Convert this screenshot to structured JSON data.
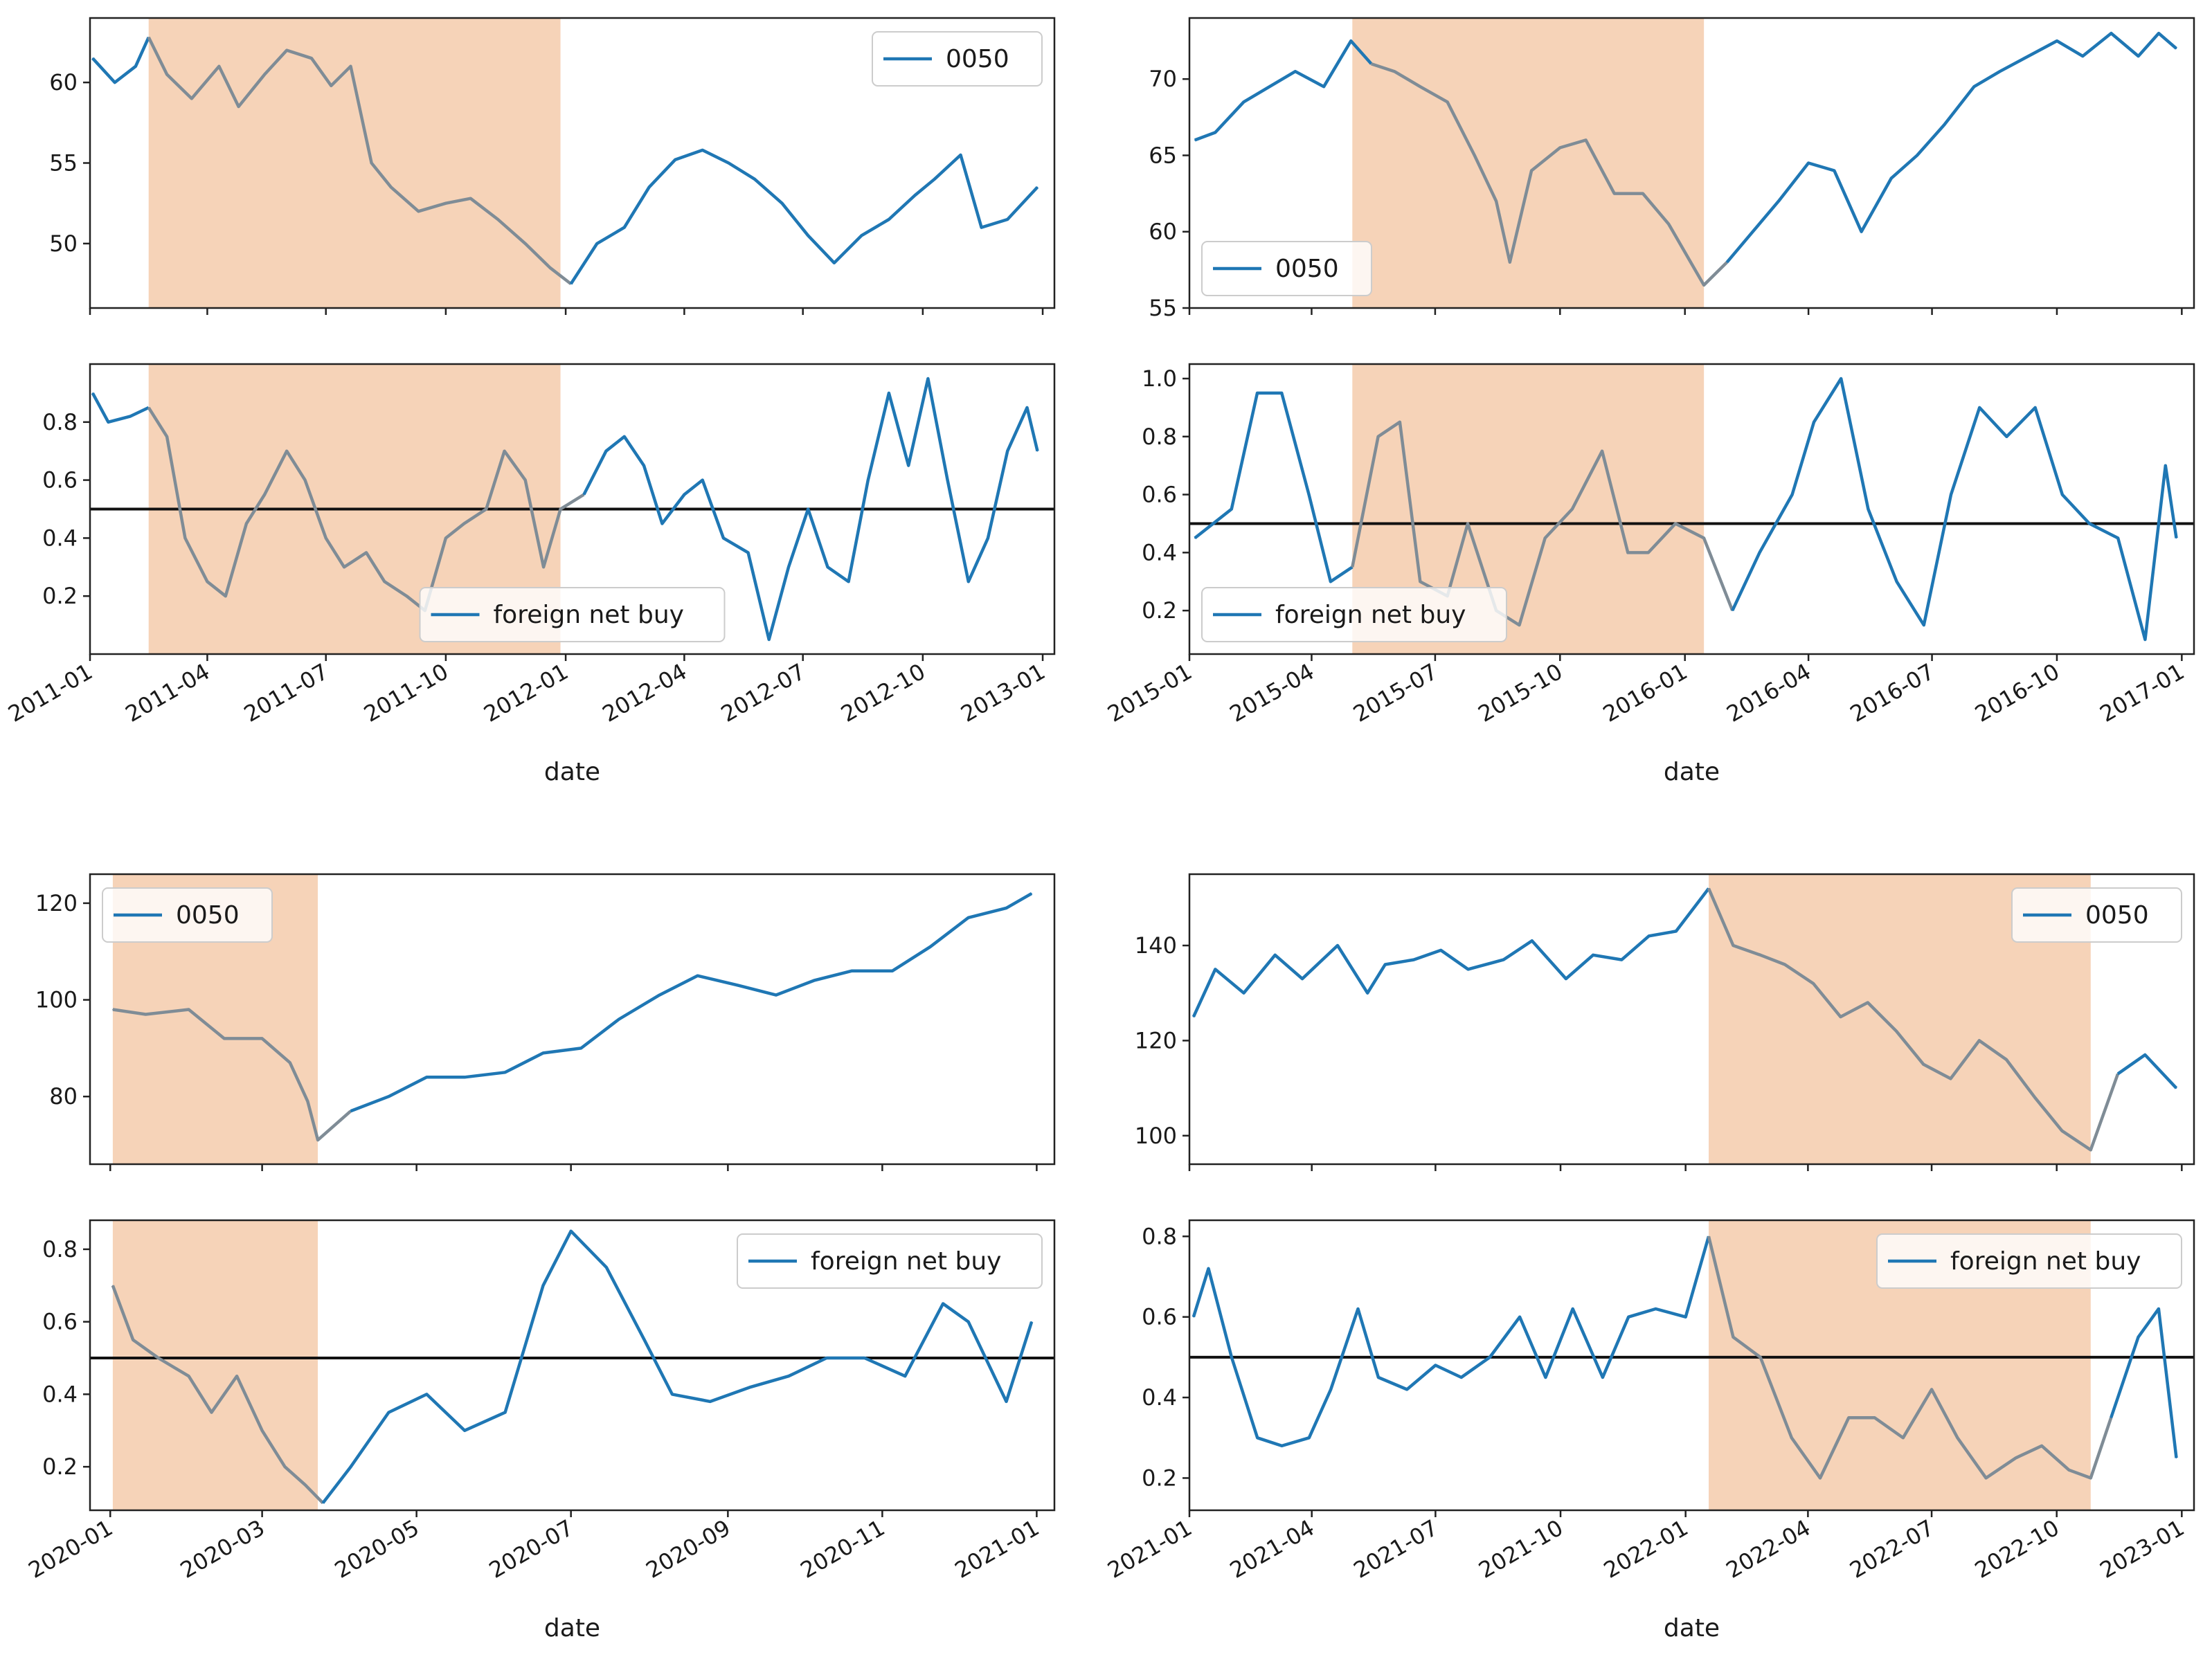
{
  "chart_data": [
    {
      "type": "line",
      "period": "2011-2012",
      "xlabel": "date",
      "xticks": [
        "2011-01",
        "2011-04",
        "2011-07",
        "2011-10",
        "2012-01",
        "2012-04",
        "2012-07",
        "2012-10",
        "2013-01"
      ],
      "xlim": [
        "2011-01-01",
        "2013-01-10"
      ],
      "highlight": [
        "2011-02-15",
        "2011-12-28"
      ],
      "highlight_color": "#f6d3b8",
      "line_color": "#1f77b4",
      "highlight_line_color": "#7f8c96",
      "price": {
        "legend": "0050",
        "legend_position": "upper right",
        "yticks": [
          "50",
          "55",
          "60"
        ],
        "ylim": [
          46,
          64
        ],
        "x": [
          "2011-01-03",
          "2011-01-20",
          "2011-02-05",
          "2011-02-15",
          "2011-03-01",
          "2011-03-20",
          "2011-04-10",
          "2011-04-25",
          "2011-05-15",
          "2011-06-01",
          "2011-06-20",
          "2011-07-05",
          "2011-07-20",
          "2011-08-05",
          "2011-08-20",
          "2011-09-10",
          "2011-10-01",
          "2011-10-20",
          "2011-11-10",
          "2011-12-01",
          "2011-12-20",
          "2012-01-05",
          "2012-01-25",
          "2012-02-15",
          "2012-03-05",
          "2012-03-25",
          "2012-04-15",
          "2012-05-05",
          "2012-05-25",
          "2012-06-15",
          "2012-07-05",
          "2012-07-25",
          "2012-08-15",
          "2012-09-05",
          "2012-09-25",
          "2012-10-10",
          "2012-10-30",
          "2012-11-15",
          "2012-12-05",
          "2012-12-28"
        ],
        "values": [
          61.5,
          60.0,
          61.0,
          62.8,
          60.5,
          59.0,
          61.0,
          58.5,
          60.5,
          62.0,
          61.5,
          59.8,
          61.0,
          55.0,
          53.5,
          52.0,
          52.5,
          52.8,
          51.5,
          50.0,
          48.5,
          47.5,
          50.0,
          51.0,
          53.5,
          55.2,
          55.8,
          55.0,
          54.0,
          52.5,
          50.5,
          48.8,
          50.5,
          51.5,
          53.0,
          54.0,
          55.5,
          51.0,
          51.5,
          53.5
        ]
      },
      "flow": {
        "legend": "foreign net buy",
        "legend_position": "lower center",
        "yticks": [
          "0.2",
          "0.4",
          "0.6",
          "0.8"
        ],
        "ylim": [
          0.0,
          1.0
        ],
        "reference_line": 0.5,
        "x": [
          "2011-01-03",
          "2011-01-15",
          "2011-02-01",
          "2011-02-15",
          "2011-03-01",
          "2011-03-15",
          "2011-04-01",
          "2011-04-15",
          "2011-05-01",
          "2011-05-15",
          "2011-06-01",
          "2011-06-15",
          "2011-07-01",
          "2011-07-15",
          "2011-08-01",
          "2011-08-15",
          "2011-09-01",
          "2011-09-15",
          "2011-10-01",
          "2011-10-15",
          "2011-11-01",
          "2011-11-15",
          "2011-12-01",
          "2011-12-15",
          "2011-12-28",
          "2012-01-15",
          "2012-02-01",
          "2012-02-15",
          "2012-03-01",
          "2012-03-15",
          "2012-04-01",
          "2012-04-15",
          "2012-05-01",
          "2012-05-20",
          "2012-06-05",
          "2012-06-20",
          "2012-07-05",
          "2012-07-20",
          "2012-08-05",
          "2012-08-20",
          "2012-09-05",
          "2012-09-20",
          "2012-10-05",
          "2012-10-20",
          "2012-11-05",
          "2012-11-20",
          "2012-12-05",
          "2012-12-20",
          "2012-12-28"
        ],
        "values": [
          0.9,
          0.8,
          0.82,
          0.85,
          0.75,
          0.4,
          0.25,
          0.2,
          0.45,
          0.55,
          0.7,
          0.6,
          0.4,
          0.3,
          0.35,
          0.25,
          0.2,
          0.15,
          0.4,
          0.45,
          0.5,
          0.7,
          0.6,
          0.3,
          0.5,
          0.55,
          0.7,
          0.75,
          0.65,
          0.45,
          0.55,
          0.6,
          0.4,
          0.35,
          0.05,
          0.3,
          0.5,
          0.3,
          0.25,
          0.6,
          0.9,
          0.65,
          0.95,
          0.6,
          0.25,
          0.4,
          0.7,
          0.85,
          0.7
        ]
      }
    },
    {
      "type": "line",
      "period": "2015-2016",
      "xlabel": "date",
      "xticks": [
        "2015-01",
        "2015-04",
        "2015-07",
        "2015-10",
        "2016-01",
        "2016-04",
        "2016-07",
        "2016-10",
        "2017-01"
      ],
      "xlim": [
        "2015-01-01",
        "2017-01-10"
      ],
      "highlight": [
        "2015-05-01",
        "2016-01-15"
      ],
      "highlight_color": "#f6d3b8",
      "line_color": "#1f77b4",
      "highlight_line_color": "#7f8c96",
      "price": {
        "legend": "0050",
        "legend_position": "lower left",
        "yticks": [
          "55",
          "60",
          "65",
          "70"
        ],
        "ylim": [
          55,
          74
        ],
        "x": [
          "2015-01-05",
          "2015-01-20",
          "2015-02-10",
          "2015-03-01",
          "2015-03-20",
          "2015-04-10",
          "2015-04-30",
          "2015-05-15",
          "2015-06-01",
          "2015-06-20",
          "2015-07-10",
          "2015-07-30",
          "2015-08-15",
          "2015-08-25",
          "2015-09-10",
          "2015-10-01",
          "2015-10-20",
          "2015-11-10",
          "2015-12-01",
          "2015-12-20",
          "2016-01-15",
          "2016-02-01",
          "2016-02-20",
          "2016-03-10",
          "2016-04-01",
          "2016-04-20",
          "2016-05-10",
          "2016-06-01",
          "2016-06-20",
          "2016-07-10",
          "2016-08-01",
          "2016-08-20",
          "2016-09-10",
          "2016-10-01",
          "2016-10-20",
          "2016-11-10",
          "2016-11-30",
          "2016-12-15",
          "2016-12-28"
        ],
        "values": [
          66.0,
          66.5,
          68.5,
          69.5,
          70.5,
          69.5,
          72.5,
          71.0,
          70.5,
          69.5,
          68.5,
          65.0,
          62.0,
          58.0,
          64.0,
          65.5,
          66.0,
          62.5,
          62.5,
          60.5,
          56.5,
          58.0,
          60.0,
          62.0,
          64.5,
          64.0,
          60.0,
          63.5,
          65.0,
          67.0,
          69.5,
          70.5,
          71.5,
          72.5,
          71.5,
          73.0,
          71.5,
          73.0,
          72.0
        ]
      },
      "flow": {
        "legend": "foreign net buy",
        "legend_position": "lower left",
        "yticks": [
          "0.2",
          "0.4",
          "0.6",
          "0.8",
          "1.0"
        ],
        "ylim": [
          0.05,
          1.05
        ],
        "reference_line": 0.5,
        "x": [
          "2015-01-05",
          "2015-02-01",
          "2015-02-20",
          "2015-03-10",
          "2015-03-30",
          "2015-04-15",
          "2015-05-01",
          "2015-05-20",
          "2015-06-05",
          "2015-06-20",
          "2015-07-10",
          "2015-07-25",
          "2015-08-15",
          "2015-09-01",
          "2015-09-20",
          "2015-10-10",
          "2015-11-01",
          "2015-11-20",
          "2015-12-05",
          "2015-12-25",
          "2016-01-15",
          "2016-02-05",
          "2016-02-25",
          "2016-03-20",
          "2016-04-05",
          "2016-04-25",
          "2016-05-15",
          "2016-06-05",
          "2016-06-25",
          "2016-07-15",
          "2016-08-05",
          "2016-08-25",
          "2016-09-15",
          "2016-10-05",
          "2016-10-25",
          "2016-11-15",
          "2016-12-05",
          "2016-12-20",
          "2016-12-28"
        ],
        "values": [
          0.45,
          0.55,
          0.95,
          0.95,
          0.6,
          0.3,
          0.35,
          0.8,
          0.85,
          0.3,
          0.25,
          0.5,
          0.2,
          0.15,
          0.45,
          0.55,
          0.75,
          0.4,
          0.4,
          0.5,
          0.45,
          0.2,
          0.4,
          0.6,
          0.85,
          1.0,
          0.55,
          0.3,
          0.15,
          0.6,
          0.9,
          0.8,
          0.9,
          0.6,
          0.5,
          0.45,
          0.1,
          0.7,
          0.45
        ]
      }
    },
    {
      "type": "line",
      "period": "2020",
      "xlabel": "date",
      "xticks": [
        "2020-01",
        "2020-03",
        "2020-05",
        "2020-07",
        "2020-09",
        "2020-11",
        "2021-01"
      ],
      "xlim": [
        "2019-12-24",
        "2021-01-08"
      ],
      "highlight": [
        "2020-01-02",
        "2020-03-23"
      ],
      "highlight_color": "#f6d3b8",
      "line_color": "#1f77b4",
      "highlight_line_color": "#7f8c96",
      "price": {
        "legend": "0050",
        "legend_position": "upper left",
        "yticks": [
          "80",
          "100",
          "120"
        ],
        "ylim": [
          66,
          126
        ],
        "x": [
          "2020-01-02",
          "2020-01-15",
          "2020-02-01",
          "2020-02-15",
          "2020-03-01",
          "2020-03-12",
          "2020-03-19",
          "2020-03-23",
          "2020-04-05",
          "2020-04-20",
          "2020-05-05",
          "2020-05-20",
          "2020-06-05",
          "2020-06-20",
          "2020-07-05",
          "2020-07-20",
          "2020-08-05",
          "2020-08-20",
          "2020-09-05",
          "2020-09-20",
          "2020-10-05",
          "2020-10-20",
          "2020-11-05",
          "2020-11-20",
          "2020-12-05",
          "2020-12-20",
          "2020-12-30"
        ],
        "values": [
          98,
          97,
          98,
          92,
          92,
          87,
          79,
          71,
          77,
          80,
          84,
          84,
          85,
          89,
          90,
          96,
          101,
          105,
          103,
          101,
          104,
          106,
          106,
          111,
          117,
          119,
          122
        ]
      },
      "flow": {
        "legend": "foreign net buy",
        "legend_position": "upper right",
        "yticks": [
          "0.2",
          "0.4",
          "0.6",
          "0.8"
        ],
        "ylim": [
          0.08,
          0.88
        ],
        "reference_line": 0.5,
        "x": [
          "2020-01-02",
          "2020-01-10",
          "2020-01-20",
          "2020-02-01",
          "2020-02-10",
          "2020-02-20",
          "2020-03-01",
          "2020-03-10",
          "2020-03-18",
          "2020-03-25",
          "2020-04-05",
          "2020-04-20",
          "2020-05-05",
          "2020-05-20",
          "2020-06-05",
          "2020-06-20",
          "2020-07-01",
          "2020-07-15",
          "2020-07-30",
          "2020-08-10",
          "2020-08-25",
          "2020-09-10",
          "2020-09-25",
          "2020-10-10",
          "2020-10-25",
          "2020-11-10",
          "2020-11-25",
          "2020-12-05",
          "2020-12-20",
          "2020-12-30"
        ],
        "values": [
          0.7,
          0.55,
          0.5,
          0.45,
          0.35,
          0.45,
          0.3,
          0.2,
          0.15,
          0.1,
          0.2,
          0.35,
          0.4,
          0.3,
          0.35,
          0.7,
          0.85,
          0.75,
          0.55,
          0.4,
          0.38,
          0.42,
          0.45,
          0.5,
          0.5,
          0.45,
          0.65,
          0.6,
          0.38,
          0.6
        ]
      }
    },
    {
      "type": "line",
      "period": "2021-2022",
      "xlabel": "date",
      "xticks": [
        "2021-01",
        "2021-04",
        "2021-07",
        "2021-10",
        "2022-01",
        "2022-04",
        "2022-07",
        "2022-10",
        "2023-01"
      ],
      "xlim": [
        "2021-01-01",
        "2023-01-10"
      ],
      "highlight": [
        "2022-01-18",
        "2022-10-26"
      ],
      "highlight_color": "#f6d3b8",
      "line_color": "#1f77b4",
      "highlight_line_color": "#7f8c96",
      "price": {
        "legend": "0050",
        "legend_position": "upper right",
        "yticks": [
          "100",
          "120",
          "140"
        ],
        "ylim": [
          94,
          155
        ],
        "x": [
          "2021-01-04",
          "2021-01-20",
          "2021-02-10",
          "2021-03-05",
          "2021-03-25",
          "2021-04-20",
          "2021-05-12",
          "2021-05-25",
          "2021-06-15",
          "2021-07-05",
          "2021-07-25",
          "2021-08-20",
          "2021-09-10",
          "2021-10-05",
          "2021-10-25",
          "2021-11-15",
          "2021-12-05",
          "2021-12-25",
          "2022-01-18",
          "2022-02-05",
          "2022-02-25",
          "2022-03-15",
          "2022-04-05",
          "2022-04-25",
          "2022-05-15",
          "2022-06-05",
          "2022-06-25",
          "2022-07-15",
          "2022-08-05",
          "2022-08-25",
          "2022-09-15",
          "2022-10-05",
          "2022-10-26",
          "2022-11-15",
          "2022-12-05",
          "2022-12-28"
        ],
        "values": [
          125,
          135,
          130,
          138,
          133,
          140,
          130,
          136,
          137,
          139,
          135,
          137,
          141,
          133,
          138,
          137,
          142,
          143,
          152,
          140,
          138,
          136,
          132,
          125,
          128,
          122,
          115,
          112,
          120,
          116,
          108,
          101,
          97,
          113,
          117,
          110
        ]
      },
      "flow": {
        "legend": "foreign net buy",
        "legend_position": "upper right",
        "yticks": [
          "0.2",
          "0.4",
          "0.6",
          "0.8"
        ],
        "ylim": [
          0.12,
          0.84
        ],
        "reference_line": 0.5,
        "x": [
          "2021-01-04",
          "2021-01-15",
          "2021-02-01",
          "2021-02-20",
          "2021-03-10",
          "2021-03-30",
          "2021-04-15",
          "2021-05-05",
          "2021-05-20",
          "2021-06-10",
          "2021-07-01",
          "2021-07-20",
          "2021-08-10",
          "2021-09-01",
          "2021-09-20",
          "2021-10-10",
          "2021-11-01",
          "2021-11-20",
          "2021-12-10",
          "2022-01-01",
          "2022-01-18",
          "2022-02-05",
          "2022-02-25",
          "2022-03-20",
          "2022-04-10",
          "2022-05-01",
          "2022-05-20",
          "2022-06-10",
          "2022-07-01",
          "2022-07-20",
          "2022-08-10",
          "2022-09-01",
          "2022-09-20",
          "2022-10-10",
          "2022-10-26",
          "2022-11-10",
          "2022-11-30",
          "2022-12-15",
          "2022-12-28"
        ],
        "values": [
          0.6,
          0.72,
          0.5,
          0.3,
          0.28,
          0.3,
          0.42,
          0.62,
          0.45,
          0.42,
          0.48,
          0.45,
          0.5,
          0.6,
          0.45,
          0.62,
          0.45,
          0.6,
          0.62,
          0.6,
          0.8,
          0.55,
          0.5,
          0.3,
          0.2,
          0.35,
          0.35,
          0.3,
          0.42,
          0.3,
          0.2,
          0.25,
          0.28,
          0.22,
          0.2,
          0.35,
          0.55,
          0.62,
          0.25
        ]
      }
    }
  ]
}
